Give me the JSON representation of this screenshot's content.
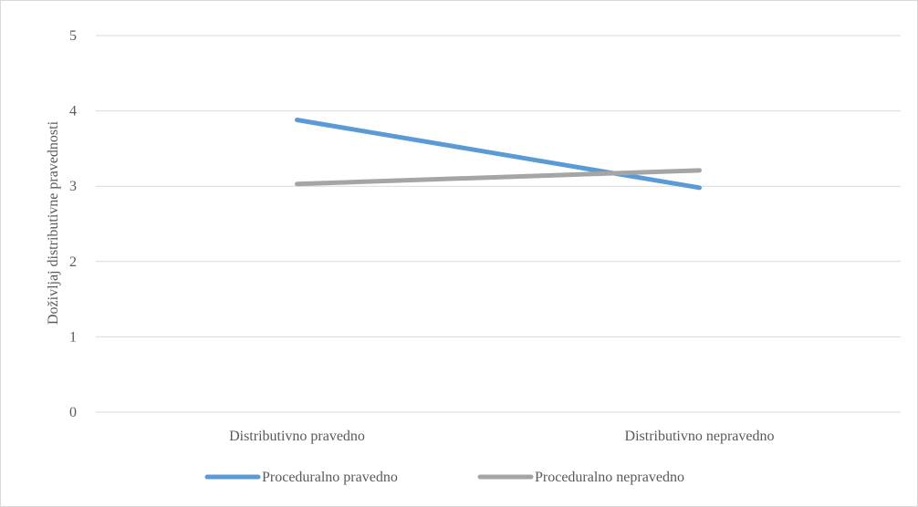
{
  "chart_data": {
    "type": "line",
    "title": "",
    "xlabel": "",
    "ylabel": "Doživljaj distributivne pravednosti",
    "categories": [
      "Distributivno pravedno",
      "Distributivno nepravedno"
    ],
    "ylim": [
      0,
      5
    ],
    "yticks": [
      0,
      1,
      2,
      3,
      4,
      5
    ],
    "grid": true,
    "legend_position": "bottom",
    "series": [
      {
        "name": "Proceduralno pravedno",
        "values": [
          3.88,
          2.98
        ],
        "color": "#5b9bd5"
      },
      {
        "name": "Proceduralno nepravedno",
        "values": [
          3.03,
          3.21
        ],
        "color": "#a5a5a5"
      }
    ]
  }
}
